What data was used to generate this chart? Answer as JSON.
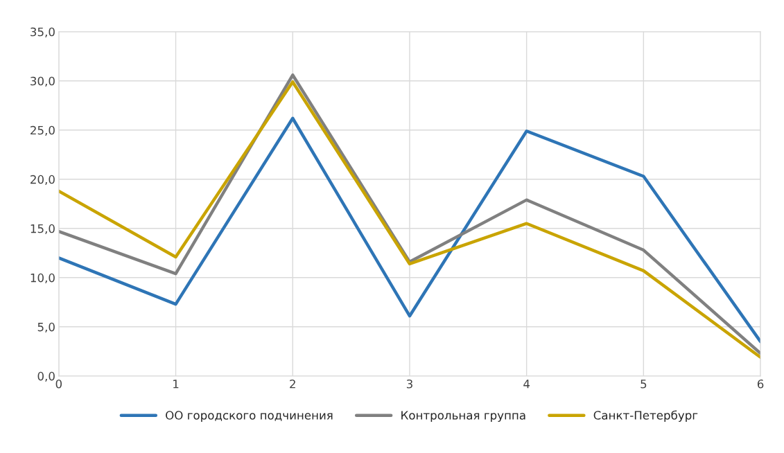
{
  "chart_data": {
    "type": "line",
    "x": [
      0,
      1,
      2,
      3,
      4,
      5,
      6
    ],
    "xlim": [
      0,
      6
    ],
    "xticks": [
      0,
      1,
      2,
      3,
      4,
      5,
      6
    ],
    "ylim": [
      0,
      35
    ],
    "yticks": [
      {
        "value": 0,
        "label": "0,0"
      },
      {
        "value": 5,
        "label": "5,0"
      },
      {
        "value": 10,
        "label": "10,0"
      },
      {
        "value": 15,
        "label": "15,0"
      },
      {
        "value": 20,
        "label": "20,0"
      },
      {
        "value": 25,
        "label": "25,0"
      },
      {
        "value": 30,
        "label": "30,0"
      },
      {
        "value": 35,
        "label": "35,0"
      }
    ],
    "grid": true,
    "legend": "bottom",
    "marker": "none",
    "line_style": "solid",
    "series": [
      {
        "name": "ОО городского подчинения",
        "color": "#2e75b6",
        "values": [
          12.0,
          7.3,
          26.2,
          6.1,
          24.9,
          20.3,
          3.5
        ]
      },
      {
        "name": "Контрольная группа",
        "color": "#808080",
        "values": [
          14.7,
          10.4,
          30.6,
          11.6,
          17.9,
          12.8,
          2.3
        ]
      },
      {
        "name": "Санкт-Петербург",
        "color": "#c9a400",
        "values": [
          18.8,
          12.1,
          29.9,
          11.4,
          15.5,
          10.7,
          1.9
        ]
      }
    ]
  }
}
